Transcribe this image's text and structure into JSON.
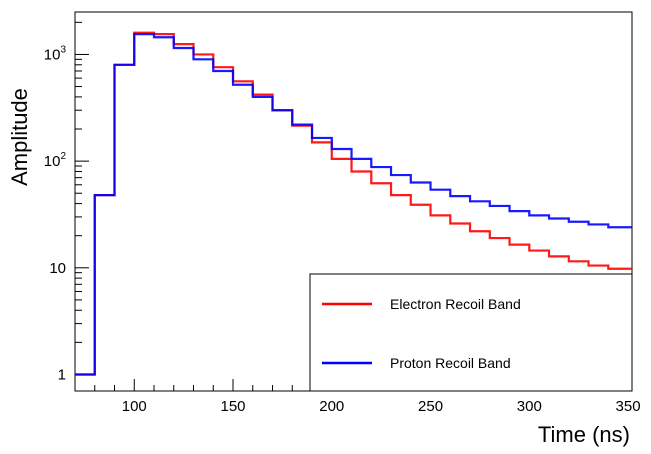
{
  "chart_data": {
    "type": "line",
    "drawstyle": "steps",
    "title": "",
    "xlabel": "Time (ns)",
    "ylabel": "Amplitude",
    "xlim": [
      70,
      352
    ],
    "ylim": [
      0.7,
      2500
    ],
    "yscale": "log",
    "grid": false,
    "legend_position": "bottom-right",
    "x_ticks": [
      {
        "value": 100,
        "label": "100"
      },
      {
        "value": 150,
        "label": "150"
      },
      {
        "value": 200,
        "label": "200"
      },
      {
        "value": 250,
        "label": "250"
      },
      {
        "value": 300,
        "label": "300"
      },
      {
        "value": 350,
        "label": "350"
      }
    ],
    "y_ticks": [
      {
        "value": 1,
        "base": "1",
        "exp": ""
      },
      {
        "value": 10,
        "base": "10",
        "exp": ""
      },
      {
        "value": 100,
        "base": "10",
        "exp": "2"
      },
      {
        "value": 1000,
        "base": "10",
        "exp": "3"
      }
    ],
    "bin_edges": [
      70,
      80,
      90,
      100,
      110,
      120,
      130,
      140,
      150,
      160,
      170,
      180,
      190,
      200,
      210,
      220,
      230,
      240,
      250,
      260,
      270,
      280,
      290,
      300,
      310,
      320,
      330,
      340,
      352
    ],
    "series": [
      {
        "name": "Electron Recoil Band",
        "color": "#ff0000",
        "values": [
          1,
          48,
          800,
          1600,
          1550,
          1250,
          1000,
          760,
          560,
          420,
          300,
          215,
          150,
          105,
          80,
          62,
          48,
          39,
          31,
          26,
          22,
          19,
          16.5,
          14.5,
          12.8,
          11.5,
          10.5,
          9.8
        ]
      },
      {
        "name": "Proton Recoil Band",
        "color": "#0000ff",
        "values": [
          1,
          48,
          800,
          1550,
          1450,
          1150,
          900,
          700,
          520,
          400,
          300,
          220,
          165,
          130,
          105,
          88,
          74,
          63,
          54,
          47,
          42,
          38,
          34,
          31,
          29,
          27,
          25.5,
          24
        ]
      }
    ]
  }
}
